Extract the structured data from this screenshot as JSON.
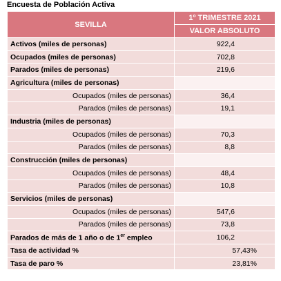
{
  "title": "Encuesta de Población Activa",
  "header": {
    "region": "SEVILLA",
    "period": "1º TRIMESTRE 2021",
    "measure": "VALOR ABSOLUTO"
  },
  "rows": [
    {
      "label": "Activos (miles de personas)",
      "value": "922,4"
    },
    {
      "label": "Ocupados (miles de personas)",
      "value": "702,8"
    },
    {
      "label": "Parados (miles de personas)",
      "value": "219,6"
    },
    {
      "label": "Agricultura (miles de personas)"
    },
    {
      "label": "Ocupados (miles de personas)",
      "value": "36,4"
    },
    {
      "label": "Parados (miles de personas)",
      "value": "19,1"
    },
    {
      "label": "Industria (miles de personas)"
    },
    {
      "label": "Ocupados (miles de personas)",
      "value": "70,3"
    },
    {
      "label": "Parados (miles de personas)",
      "value": "8,8"
    },
    {
      "label": "Construcción (miles de personas)"
    },
    {
      "label": "Ocupados (miles de personas)",
      "value": "48,4"
    },
    {
      "label": "Parados (miles de personas)",
      "value": "10,8"
    },
    {
      "label": "Servicios (miles de personas)"
    },
    {
      "label": "Ocupados (miles de personas)",
      "value": "547,6"
    },
    {
      "label": "Parados (miles de personas)",
      "value": "73,8"
    },
    {
      "label": "Parados de más de 1 año o de 1",
      "sup": "er",
      "label_end": " empleo",
      "value": "106,2"
    },
    {
      "label": "Tasa de actividad %",
      "value": "57,43%"
    },
    {
      "label": "Tasa de paro %",
      "value": "23,81%"
    }
  ]
}
